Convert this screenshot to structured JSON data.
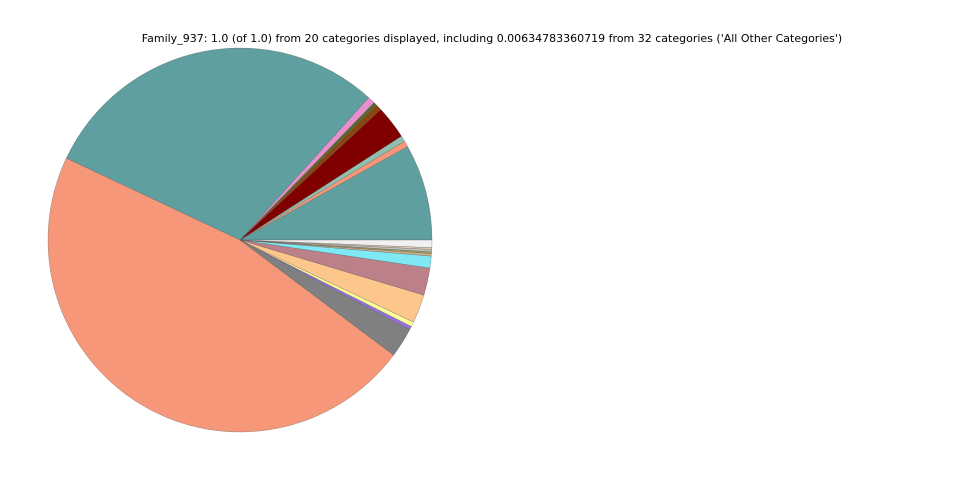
{
  "chart_data": {
    "type": "pie",
    "title": "Family_937: 1.0 (of 1.0) from 20 categories displayed, including 0.00634783360719 from 32 categories ('All Other Categories')",
    "categories": [
      null,
      null,
      null,
      null,
      null,
      null,
      null,
      null,
      null,
      null,
      null,
      null,
      null,
      null,
      null,
      null,
      null,
      null,
      null,
      null
    ],
    "values": [
      0.081,
      0.005,
      0.005,
      0.028,
      0.005,
      0.003,
      0.006,
      0.297,
      0.4677,
      0.025,
      0.003,
      0.004,
      0.024,
      0.023,
      0.01,
      0.002,
      0.0015,
      0.002,
      0.0015,
      0.00634783360719
    ],
    "colors": [
      "#5f9f9f",
      "#f79779",
      "#8fbfb0",
      "#800000",
      "#8b4513",
      "#556b2f",
      "#e98fcf",
      "#5f9f9f",
      "#f79779",
      "#808080",
      "#9370db",
      "#ffff99",
      "#fdc68a",
      "#bc8089",
      "#7ee8f5",
      "#d2b48c",
      "#a0a060",
      "#c0c0c0",
      "#e0d0b0",
      "#f0f0f0"
    ]
  }
}
